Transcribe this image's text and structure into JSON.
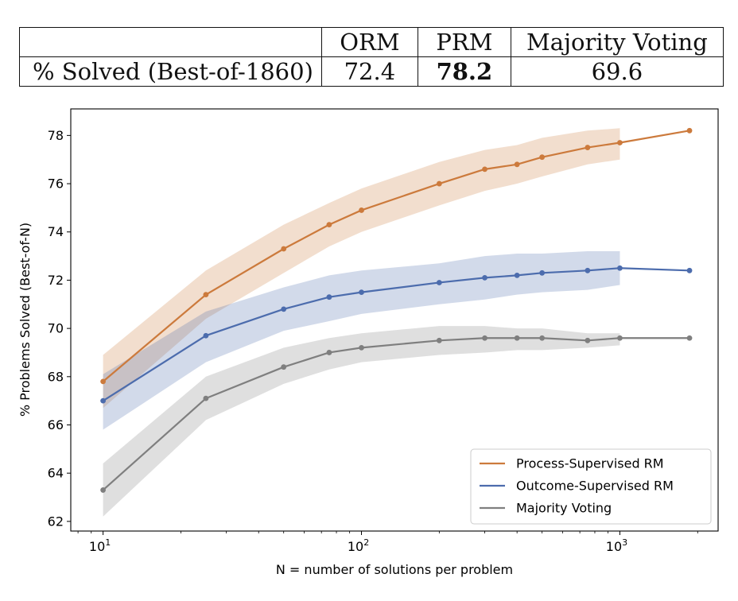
{
  "table": {
    "headers": [
      "",
      "ORM",
      "PRM",
      "Majority Voting"
    ],
    "row_label": "% Solved (Best-of-1860)",
    "values": [
      "72.4",
      "78.2",
      "69.6"
    ],
    "bold_column": "PRM"
  },
  "chart_data": {
    "type": "line",
    "xlabel": "N = number of solutions per problem",
    "ylabel": "% Problems Solved (Best-of-N)",
    "xscale": "log",
    "xlim": [
      7.5,
      2400
    ],
    "ylim": [
      61.6,
      79.1
    ],
    "yticks": [
      62,
      64,
      66,
      68,
      70,
      72,
      74,
      76,
      78
    ],
    "xticks": [
      {
        "value": 10,
        "base": "10",
        "exp": "1"
      },
      {
        "value": 100,
        "base": "10",
        "exp": "2"
      },
      {
        "value": 1000,
        "base": "10",
        "exp": "3"
      }
    ],
    "legend_position": "lower-right",
    "grid": false,
    "series": [
      {
        "name": "Process-Supervised RM",
        "color": "#cc7a3c",
        "x": [
          10,
          25,
          50,
          75,
          100,
          200,
          300,
          400,
          500,
          750,
          1000,
          1860
        ],
        "y": [
          67.8,
          71.4,
          73.3,
          74.3,
          74.9,
          76.0,
          76.6,
          76.8,
          77.1,
          77.5,
          77.7,
          78.2
        ],
        "band_x": [
          10,
          25,
          50,
          75,
          100,
          200,
          300,
          400,
          500,
          750,
          1000
        ],
        "band_lower": [
          66.7,
          70.4,
          72.3,
          73.4,
          74.0,
          75.1,
          75.7,
          76.0,
          76.3,
          76.8,
          77.0
        ],
        "band_upper": [
          68.9,
          72.4,
          74.3,
          75.2,
          75.8,
          76.9,
          77.4,
          77.6,
          77.9,
          78.2,
          78.3
        ]
      },
      {
        "name": "Outcome-Supervised RM",
        "color": "#4c6cad",
        "x": [
          10,
          25,
          50,
          75,
          100,
          200,
          300,
          400,
          500,
          750,
          1000,
          1860
        ],
        "y": [
          67.0,
          69.7,
          70.8,
          71.3,
          71.5,
          71.9,
          72.1,
          72.2,
          72.3,
          72.4,
          72.5,
          72.4
        ],
        "band_x": [
          10,
          25,
          50,
          75,
          100,
          200,
          300,
          400,
          500,
          750,
          1000
        ],
        "band_lower": [
          65.8,
          68.6,
          69.9,
          70.3,
          70.6,
          71.0,
          71.2,
          71.4,
          71.5,
          71.6,
          71.8
        ],
        "band_upper": [
          68.1,
          70.7,
          71.7,
          72.2,
          72.4,
          72.7,
          73.0,
          73.1,
          73.1,
          73.2,
          73.2
        ]
      },
      {
        "name": "Majority Voting",
        "color": "#7f7f7f",
        "x": [
          10,
          25,
          50,
          75,
          100,
          200,
          300,
          400,
          500,
          750,
          1000,
          1860
        ],
        "y": [
          63.3,
          67.1,
          68.4,
          69.0,
          69.2,
          69.5,
          69.6,
          69.6,
          69.6,
          69.5,
          69.6,
          69.6
        ],
        "band_x": [
          10,
          25,
          50,
          75,
          100,
          200,
          300,
          400,
          500,
          750,
          1000
        ],
        "band_lower": [
          62.2,
          66.2,
          67.7,
          68.3,
          68.6,
          68.9,
          69.0,
          69.1,
          69.1,
          69.2,
          69.3
        ],
        "band_upper": [
          64.4,
          68.0,
          69.2,
          69.6,
          69.8,
          70.1,
          70.1,
          70.0,
          70.0,
          69.8,
          69.8
        ]
      }
    ]
  }
}
